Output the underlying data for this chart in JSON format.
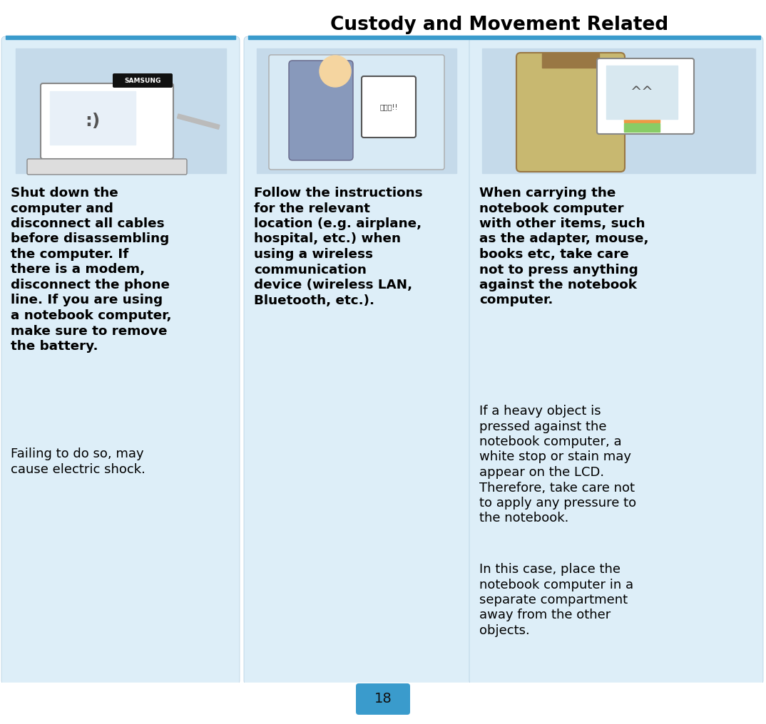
{
  "title": "Custody and Movement Related",
  "page_number": "18",
  "bg_color": "#ddeef8",
  "panel_bg": "#ddeef8",
  "white_bg": "#ffffff",
  "blue_line_color": "#3a9bcc",
  "title_color": "#000000",
  "col1_bold_text": "Shut down the\ncomputer and\ndisconnect all cables\nbefore disassembling\nthe computer. If\nthere is a modem,\ndisconnect the phone\nline. If you are using\na notebook computer,\nmake sure to remove\nthe battery.",
  "col1_normal_text": "Failing to do so, may\ncause electric shock.",
  "col2_bold_text": "Follow the instructions\nfor the relevant\nlocation (e.g. airplane,\nhospital, etc.) when\nusing a wireless\ncommunication\ndevice (wireless LAN,\nBluetooth, etc.).",
  "col3_bold_text": "When carrying the\nnotebook computer\nwith other items, such\nas the adapter, mouse,\nbooks etc, take care\nnot to press anything\nagainst the notebook\ncomputer.",
  "col3_normal_text1": "If a heavy object is\npressed against the\nnotebook computer, a\nwhite stop or stain may\nappear on the LCD.\nTherefore, take care not\nto apply any pressure to\nthe notebook.",
  "col3_normal_text2": "In this case, place the\nnotebook computer in a\nseparate compartment\naway from the other\nobjects.",
  "panel_bg_light": "#deeef8",
  "panel_border_color": "#b0cce0"
}
